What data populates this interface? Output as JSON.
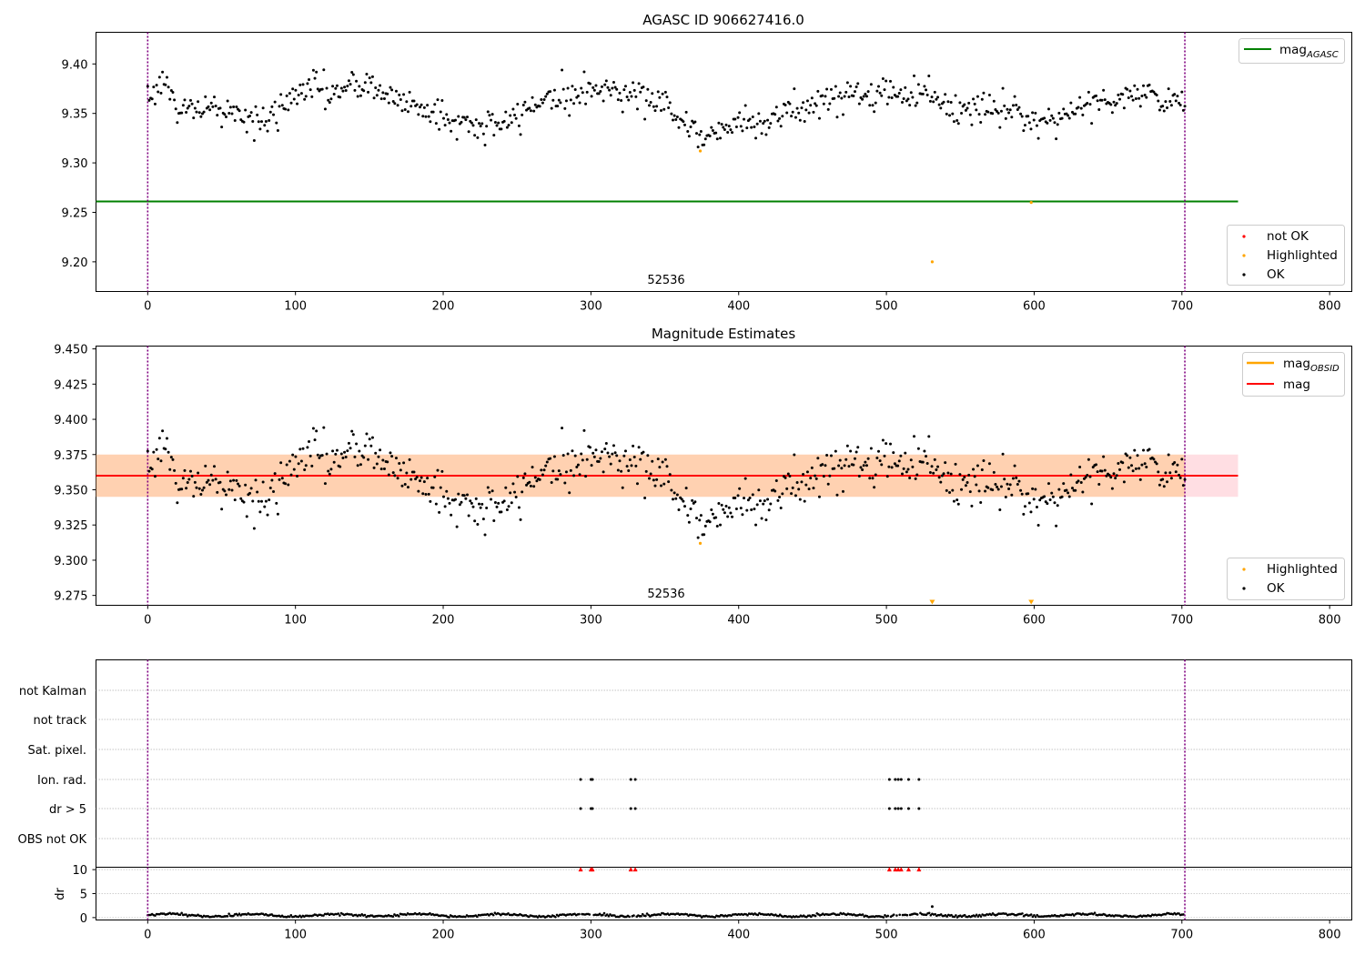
{
  "figure": {
    "background": "#ffffff"
  },
  "panels": [
    {
      "title": "AGASC ID 906627416.0",
      "annotation": "52536",
      "xticks": [
        0,
        100,
        200,
        300,
        400,
        500,
        600,
        700,
        800
      ],
      "yticks": [
        "9.20",
        "9.25",
        "9.30",
        "9.35",
        "9.40"
      ],
      "legend_lines": [
        {
          "label": "mag",
          "sub": "AGASC",
          "color": "#008000"
        }
      ],
      "legend_points": [
        {
          "label": "not OK",
          "color": "#ff0000"
        },
        {
          "label": "Highlighted",
          "color": "#ffa500"
        },
        {
          "label": "OK",
          "color": "#000000"
        }
      ]
    },
    {
      "title": "Magnitude Estimates",
      "annotation": "52536",
      "xticks": [
        0,
        100,
        200,
        300,
        400,
        500,
        600,
        700,
        800
      ],
      "yticks": [
        "9.275",
        "9.300",
        "9.325",
        "9.350",
        "9.375",
        "9.400",
        "9.425",
        "9.450"
      ],
      "legend_lines": [
        {
          "label": "mag",
          "sub": "OBSID",
          "color": "#ffa500"
        },
        {
          "label": "mag",
          "sub": "",
          "color": "#ff0000"
        }
      ],
      "legend_points": [
        {
          "label": "Highlighted",
          "color": "#ffa500"
        },
        {
          "label": "OK",
          "color": "#000000"
        }
      ]
    },
    {
      "title": "",
      "flag_labels": [
        "not Kalman",
        "not track",
        "Sat. pixel.",
        "Ion. rad.",
        "dr > 5",
        "OBS not OK"
      ],
      "dr_ylabel": "dr",
      "dr_yticks": [
        0,
        5,
        10
      ],
      "xticks": [
        0,
        100,
        200,
        300,
        400,
        500,
        600,
        700,
        800
      ]
    }
  ],
  "chart_data": [
    {
      "type": "scatter",
      "title": "AGASC ID 906627416.0",
      "xlim": [
        -35,
        815
      ],
      "ylim": [
        9.17,
        9.432
      ],
      "series": [
        {
          "name": "OK",
          "color": "#000000",
          "generated": {
            "n": 702,
            "x_start": 0,
            "x_end": 702,
            "mean_anchors": [
              [
                0,
                9.37
              ],
              [
                5,
                9.375
              ],
              [
                12,
                9.385
              ],
              [
                18,
                9.355
              ],
              [
                45,
                9.355
              ],
              [
                60,
                9.35
              ],
              [
                75,
                9.34
              ],
              [
                85,
                9.345
              ],
              [
                100,
                9.37
              ],
              [
                110,
                9.38
              ],
              [
                125,
                9.37
              ],
              [
                150,
                9.38
              ],
              [
                165,
                9.365
              ],
              [
                180,
                9.36
              ],
              [
                195,
                9.35
              ],
              [
                210,
                9.34
              ],
              [
                230,
                9.335
              ],
              [
                250,
                9.345
              ],
              [
                265,
                9.365
              ],
              [
                290,
                9.37
              ],
              [
                310,
                9.375
              ],
              [
                330,
                9.37
              ],
              [
                350,
                9.36
              ],
              [
                362,
                9.345
              ],
              [
                372,
                9.325
              ],
              [
                385,
                9.33
              ],
              [
                400,
                9.345
              ],
              [
                420,
                9.34
              ],
              [
                440,
                9.355
              ],
              [
                460,
                9.365
              ],
              [
                490,
                9.37
              ],
              [
                515,
                9.37
              ],
              [
                530,
                9.375
              ],
              [
                545,
                9.35
              ],
              [
                560,
                9.355
              ],
              [
                580,
                9.355
              ],
              [
                595,
                9.345
              ],
              [
                615,
                9.345
              ],
              [
                630,
                9.355
              ],
              [
                650,
                9.365
              ],
              [
                670,
                9.37
              ],
              [
                690,
                9.365
              ],
              [
                702,
                9.355
              ]
            ],
            "noise": 0.008
          }
        },
        {
          "name": "Highlighted",
          "color": "#ffa500",
          "points": [
            [
              374,
              9.312
            ],
            [
              531,
              9.2
            ],
            [
              598,
              9.26
            ]
          ]
        },
        {
          "name": "not OK",
          "color": "#ff0000",
          "points": []
        },
        {
          "name": "mag AGASC",
          "color": "#008000",
          "hline": 9.261,
          "x_range": [
            -35,
            738
          ]
        }
      ],
      "vlines": [
        0,
        702
      ],
      "text_label": {
        "text": "52536",
        "x": 335,
        "y": 9.18
      }
    },
    {
      "type": "scatter",
      "title": "Magnitude Estimates",
      "xlim": [
        -35,
        815
      ],
      "ylim": [
        9.268,
        9.452
      ],
      "series": [
        {
          "name": "OK",
          "color": "#000000",
          "same_as": "panel_1_ok"
        },
        {
          "name": "Highlighted",
          "color": "#ffa500",
          "points": [
            [
              374,
              9.312
            ]
          ],
          "offscale_markers": [
            531,
            598
          ]
        },
        {
          "name": "mag OBSID",
          "color": "#ffa500",
          "band": [
            9.345,
            9.375
          ],
          "x_range": [
            -35,
            738
          ]
        },
        {
          "name": "mag",
          "color": "#ff0000",
          "hline": 9.36,
          "x_range": [
            -35,
            738
          ]
        }
      ],
      "vlines": [
        0,
        702
      ],
      "text_label": {
        "text": "52536",
        "x": 335,
        "y": 9.272
      }
    },
    {
      "type": "scatter",
      "flag_rows": [
        "not Kalman",
        "not track",
        "Sat. pixel.",
        "Ion. rad.",
        "dr > 5",
        "OBS not OK"
      ],
      "flag_x": [
        293,
        300,
        301,
        327,
        330,
        502,
        506,
        508,
        510,
        515,
        522
      ],
      "flagged_rows": [
        "Ion. rad.",
        "dr > 5"
      ],
      "dr_ylim": [
        -0.5,
        10.5
      ],
      "dr_outlier": [
        [
          531,
          2.3
        ]
      ],
      "dr_capped_x": [
        293,
        300,
        301,
        327,
        330,
        502,
        506,
        508,
        510,
        515,
        522
      ],
      "dr_typical": 0.5,
      "xlim": [
        -35,
        815
      ],
      "vlines": [
        0,
        702
      ]
    }
  ]
}
